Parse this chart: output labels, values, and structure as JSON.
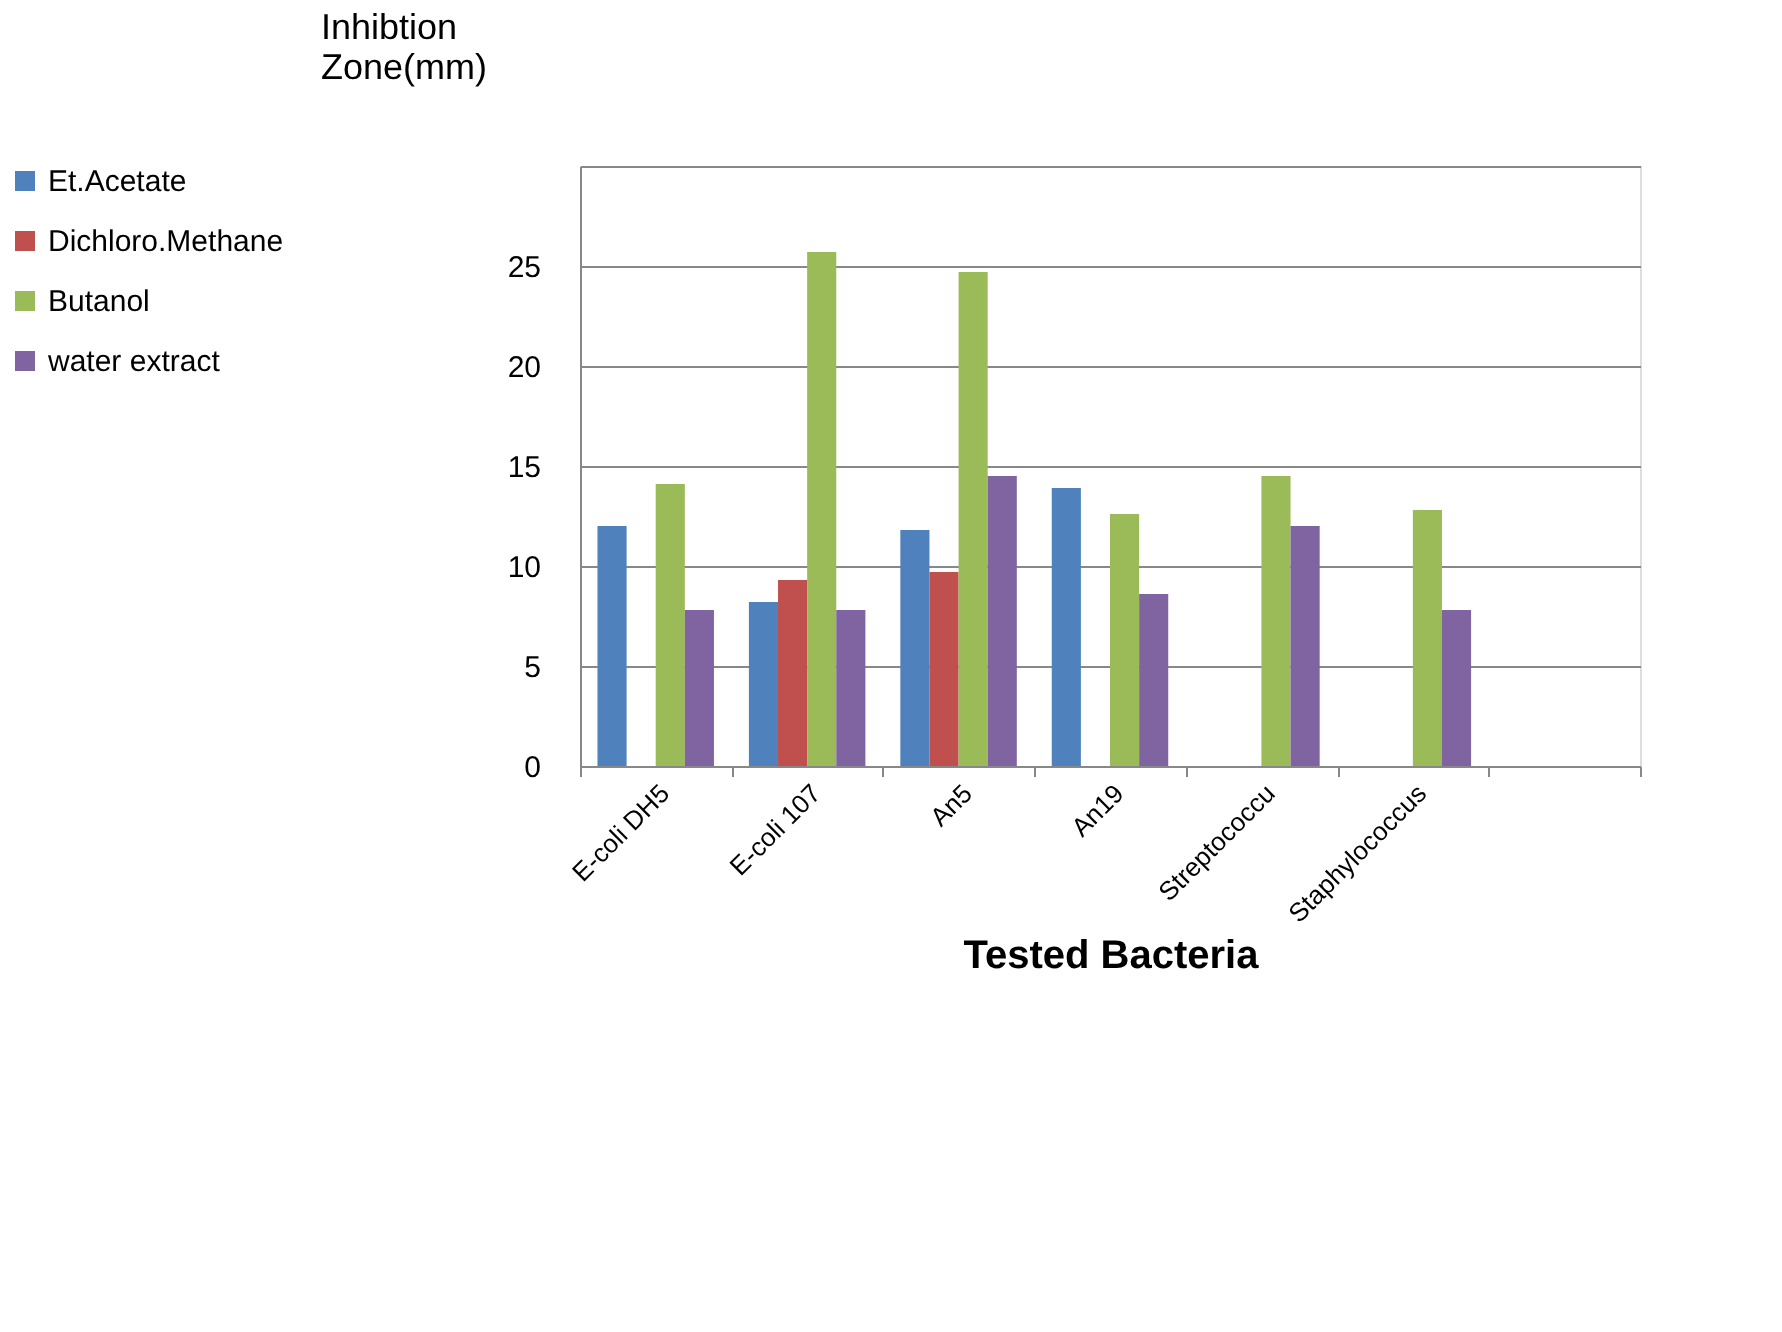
{
  "chart_data": {
    "type": "bar",
    "xlabel": "Tested Bacteria",
    "ylabel": "Inhibtion Zone(mm)",
    "categories": [
      "E-coli DH5",
      "E-coli 107",
      "An5",
      "An19",
      "Streptococcu",
      "Staphylococcus",
      null
    ],
    "series": [
      {
        "name": "Et.Acetate",
        "color": "#4f81bd",
        "values": [
          12,
          8.2,
          11.8,
          13.9,
          null,
          null,
          null
        ]
      },
      {
        "name": "Dichloro.Methane",
        "color": "#c0504d",
        "values": [
          null,
          9.3,
          9.7,
          null,
          null,
          null,
          null
        ]
      },
      {
        "name": "Butanol",
        "color": "#9bbb59",
        "values": [
          14.1,
          25.7,
          24.7,
          12.6,
          14.5,
          12.8,
          null
        ]
      },
      {
        "name": "water extract",
        "color": "#8064a2",
        "values": [
          7.8,
          7.8,
          14.5,
          8.6,
          12,
          7.8,
          null
        ]
      }
    ],
    "ylim": [
      0,
      30
    ],
    "yticks": [
      0,
      5,
      10,
      15,
      20,
      25,
      {
        "value": 30,
        "label": null
      }
    ],
    "grid": "y",
    "legend": "left"
  }
}
